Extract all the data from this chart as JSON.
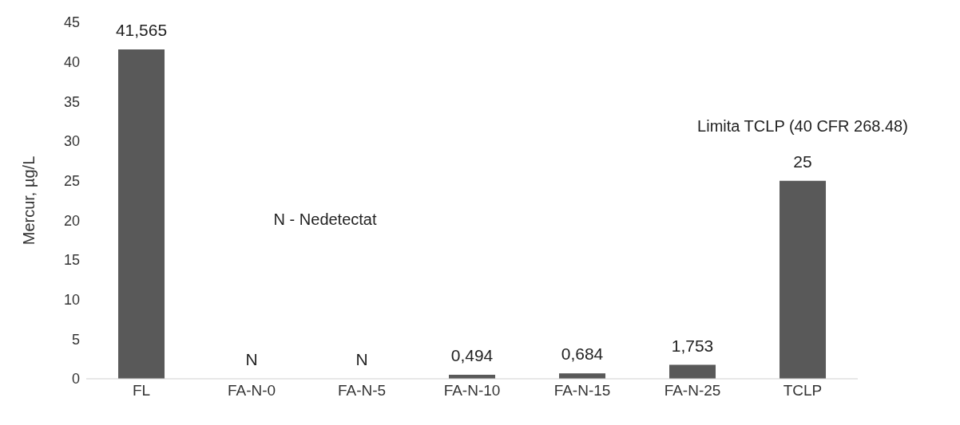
{
  "chart_data": {
    "type": "bar",
    "ylabel": "Mercur, µg/L",
    "categories": [
      "FL",
      "FA-N-0",
      "FA-N-5",
      "FA-N-10",
      "FA-N-15",
      "FA-N-25",
      "TCLP"
    ],
    "values": [
      41.565,
      null,
      null,
      0.494,
      0.684,
      1.753,
      25
    ],
    "value_labels": [
      "41,565",
      "N",
      "N",
      "0,494",
      "0,684",
      "1,753",
      "25"
    ],
    "color": "#595959",
    "ylim": [
      0,
      45
    ],
    "yticks": [
      0,
      5,
      10,
      15,
      20,
      25,
      30,
      35,
      40,
      45
    ],
    "grid": false,
    "legend": false,
    "annotations": [
      "N - Nedetectat",
      "Limita TCLP (40 CFR 268.48)"
    ]
  }
}
